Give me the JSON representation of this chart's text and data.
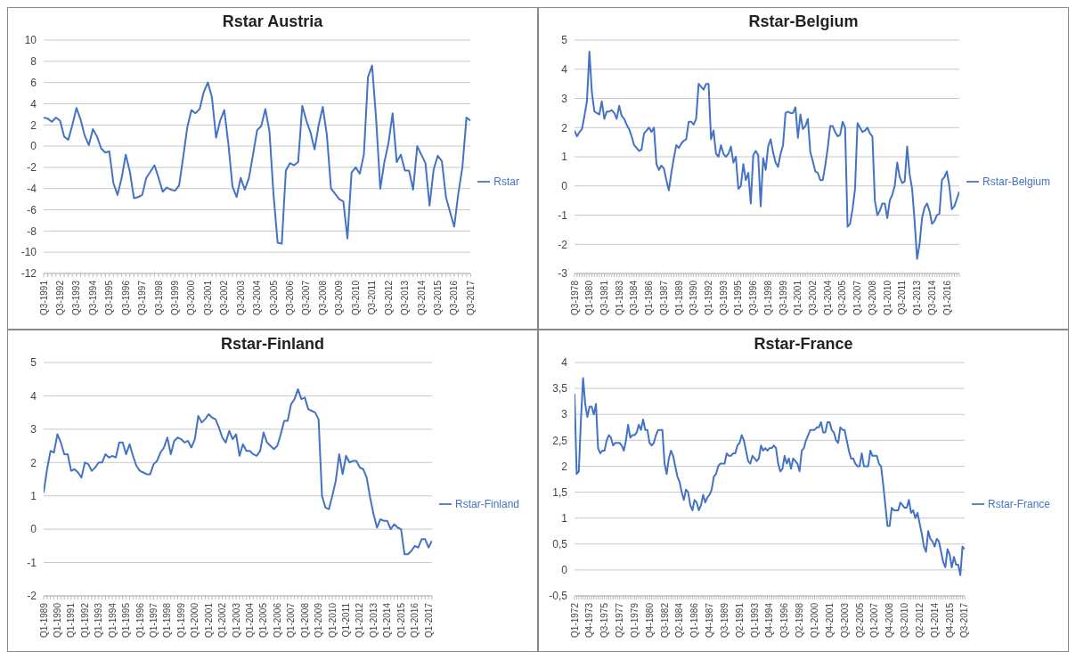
{
  "chart_data": [
    {
      "type": "line",
      "title": "Rstar Austria",
      "grid": "y",
      "legend": "right",
      "ylim": [
        -12,
        10
      ],
      "yticks": [
        -12,
        -10,
        -8,
        -6,
        -4,
        -2,
        0,
        2,
        4,
        6,
        8,
        10
      ],
      "categories": [
        "Q3-1991",
        null,
        null,
        null,
        "Q3-1992",
        null,
        null,
        null,
        "Q3-1993",
        null,
        null,
        null,
        "Q3-1994",
        null,
        null,
        null,
        "Q3-1995",
        null,
        null,
        null,
        "Q3-1996",
        null,
        null,
        null,
        "Q3-1997",
        null,
        null,
        null,
        "Q3-1998",
        null,
        null,
        null,
        "Q3-1999",
        null,
        null,
        null,
        "Q3-2000",
        null,
        null,
        null,
        "Q3-2001",
        null,
        null,
        null,
        "Q3-2002",
        null,
        null,
        null,
        "Q3-2003",
        null,
        null,
        null,
        "Q3-2004",
        null,
        null,
        null,
        "Q3-2005",
        null,
        null,
        null,
        "Q3-2006",
        null,
        null,
        null,
        "Q3-2007",
        null,
        null,
        null,
        "Q3-2008",
        null,
        null,
        null,
        "Q3-2009",
        null,
        null,
        null,
        "Q3-2010",
        null,
        null,
        null,
        "Q3-2011",
        null,
        null,
        null,
        "Q3-2012",
        null,
        null,
        null,
        "Q3-2013",
        null,
        null,
        null,
        "Q3-2014",
        null,
        null,
        null,
        "Q3-2015",
        null,
        null,
        null,
        "Q3-2016",
        null,
        null,
        null,
        "Q3-2017"
      ],
      "series": [
        {
          "name": "Rstar",
          "color": "#4472c4",
          "values": [
            2.7,
            2.6,
            2.3,
            2.7,
            2.4,
            0.9,
            0.6,
            2.0,
            3.6,
            2.5,
            1.0,
            0.1,
            1.6,
            0.9,
            -0.2,
            -0.6,
            -0.5,
            -3.5,
            -4.6,
            -3.0,
            -0.8,
            -2.4,
            -4.9,
            -4.8,
            -4.6,
            -3.0,
            -2.4,
            -1.8,
            -3.0,
            -4.3,
            -3.9,
            -4.1,
            -4.2,
            -3.7,
            -1.0,
            1.8,
            3.4,
            3.1,
            3.5,
            5.1,
            6.0,
            4.6,
            0.8,
            2.4,
            3.4,
            0.2,
            -3.8,
            -4.8,
            -3.0,
            -4.1,
            -3.0,
            -0.8,
            1.5,
            1.9,
            3.5,
            1.4,
            -4.6,
            -9.1,
            -9.2,
            -2.3,
            -1.6,
            -1.8,
            -1.5,
            3.8,
            2.4,
            1.3,
            -0.3,
            2.0,
            3.7,
            1.0,
            -4.0,
            -4.5,
            -5.0,
            -5.2,
            -8.7,
            -2.5,
            -2.0,
            -2.6,
            -0.8,
            6.5,
            7.6,
            2.5,
            -4.0,
            -1.5,
            0.3,
            3.1,
            -1.5,
            -0.8,
            -2.3,
            -2.3,
            -4.1,
            0.0,
            -0.8,
            -1.6,
            -5.6,
            -2.2,
            -0.9,
            -1.4,
            -4.8,
            -6.2,
            -7.6,
            -4.5,
            -2.0,
            2.7,
            2.4
          ]
        }
      ]
    },
    {
      "type": "line",
      "title": "Rstar-Belgium",
      "grid": "y",
      "legend": "right",
      "ylim": [
        -3,
        5
      ],
      "yticks": [
        -3,
        -2,
        -1,
        0,
        1,
        2,
        3,
        4,
        5
      ],
      "categories": [
        "Q3-1978",
        null,
        null,
        null,
        null,
        null,
        "Q1-1980",
        null,
        null,
        null,
        null,
        null,
        "Q3-1981",
        null,
        null,
        null,
        null,
        null,
        "Q1-1983",
        null,
        null,
        null,
        null,
        null,
        "Q3-1984",
        null,
        null,
        null,
        null,
        null,
        "Q1-1986",
        null,
        null,
        null,
        null,
        null,
        "Q3-1987",
        null,
        null,
        null,
        null,
        null,
        "Q1-1989",
        null,
        null,
        null,
        null,
        null,
        "Q3-1990",
        null,
        null,
        null,
        null,
        null,
        "Q1-1992",
        null,
        null,
        null,
        null,
        null,
        "Q3-1993",
        null,
        null,
        null,
        null,
        null,
        "Q1-1995",
        null,
        null,
        null,
        null,
        null,
        "Q3-1996",
        null,
        null,
        null,
        null,
        null,
        "Q1-1998",
        null,
        null,
        null,
        null,
        null,
        "Q3-1999",
        null,
        null,
        null,
        null,
        null,
        "Q1-2001",
        null,
        null,
        null,
        null,
        null,
        "Q3-2002",
        null,
        null,
        null,
        null,
        null,
        "Q1-2004",
        null,
        null,
        null,
        null,
        null,
        "Q3-2005",
        null,
        null,
        null,
        null,
        null,
        "Q1-2007",
        null,
        null,
        null,
        null,
        null,
        "Q3-2008",
        null,
        null,
        null,
        null,
        null,
        "Q1-2010",
        null,
        null,
        null,
        null,
        null,
        "Q3-2011",
        null,
        null,
        null,
        null,
        null,
        "Q1-2013",
        null,
        null,
        null,
        null,
        null,
        "Q3-2014",
        null,
        null,
        null,
        null,
        null,
        "Q1-2016",
        null,
        null,
        null,
        null,
        null
      ],
      "series": [
        {
          "name": "Rstar-Belgium",
          "color": "#4472c4",
          "values": [
            1.9,
            1.7,
            1.85,
            1.95,
            2.4,
            2.9,
            4.6,
            3.2,
            2.55,
            2.5,
            2.45,
            2.9,
            2.3,
            2.55,
            2.55,
            2.6,
            2.5,
            2.3,
            2.75,
            2.4,
            2.3,
            2.1,
            1.95,
            1.7,
            1.4,
            1.3,
            1.2,
            1.25,
            1.8,
            1.9,
            2.0,
            1.85,
            2.0,
            0.75,
            0.55,
            0.7,
            0.6,
            0.2,
            -0.15,
            0.45,
            0.95,
            1.4,
            1.3,
            1.45,
            1.55,
            1.6,
            2.2,
            2.2,
            2.1,
            2.3,
            3.5,
            3.4,
            3.3,
            3.5,
            3.5,
            1.6,
            1.9,
            1.1,
            1.0,
            1.4,
            1.1,
            1.0,
            1.1,
            1.35,
            0.8,
            1.0,
            -0.1,
            0.0,
            0.75,
            0.2,
            0.45,
            -0.6,
            1.05,
            1.2,
            1.05,
            -0.7,
            0.95,
            0.55,
            1.35,
            1.6,
            1.15,
            0.8,
            0.65,
            1.1,
            1.4,
            2.5,
            2.55,
            2.5,
            2.5,
            2.7,
            1.65,
            2.45,
            1.95,
            2.05,
            2.3,
            1.15,
            0.85,
            0.5,
            0.45,
            0.2,
            0.2,
            0.7,
            1.3,
            2.05,
            2.05,
            1.85,
            1.7,
            1.75,
            2.2,
            2.0,
            -1.4,
            -1.3,
            -0.8,
            -0.1,
            2.15,
            2.0,
            1.85,
            1.9,
            2.0,
            1.8,
            1.7,
            -0.5,
            -1.0,
            -0.85,
            -0.6,
            -0.6,
            -1.1,
            -0.5,
            -0.3,
            0.0,
            0.8,
            0.3,
            0.1,
            0.15,
            1.35,
            0.4,
            -0.1,
            -1.2,
            -2.5,
            -2.0,
            -1.1,
            -0.75,
            -0.6,
            -0.85,
            -1.3,
            -1.2,
            -1.0,
            -0.95,
            0.2,
            0.3,
            0.5,
            0.0,
            -0.8,
            -0.7,
            -0.45,
            -0.2
          ]
        }
      ]
    },
    {
      "type": "line",
      "title": "Rstar-Finland",
      "grid": "y",
      "legend": "right",
      "ylim": [
        -2,
        5
      ],
      "yticks": [
        -2,
        -1,
        0,
        1,
        2,
        3,
        4,
        5
      ],
      "categories": [
        "Q1-1989",
        null,
        null,
        null,
        "Q1-1990",
        null,
        null,
        null,
        "Q1-1991",
        null,
        null,
        null,
        "Q1-1992",
        null,
        null,
        null,
        "Q1-1993",
        null,
        null,
        null,
        "Q1-1994",
        null,
        null,
        null,
        "Q1-1995",
        null,
        null,
        null,
        "Q1-1996",
        null,
        null,
        null,
        "Q1-1997",
        null,
        null,
        null,
        "Q1-1998",
        null,
        null,
        null,
        "Q1-1999",
        null,
        null,
        null,
        "Q1-2000",
        null,
        null,
        null,
        "Q1-2001",
        null,
        null,
        null,
        "Q1-2002",
        null,
        null,
        null,
        "Q1-2003",
        null,
        null,
        null,
        "Q1-2004",
        null,
        null,
        null,
        "Q1-2005",
        null,
        null,
        null,
        "Q1-2006",
        null,
        null,
        null,
        "Q1-2007",
        null,
        null,
        null,
        "Q1-2008",
        null,
        null,
        null,
        "Q1-2009",
        null,
        null,
        null,
        "Q1-2010",
        null,
        null,
        null,
        "Q1-2011",
        null,
        null,
        null,
        "Q1-2012",
        null,
        null,
        null,
        "Q1-2013",
        null,
        null,
        null,
        "Q1-2014",
        null,
        null,
        null,
        "Q1-2015",
        null,
        null,
        null,
        "Q1-2016",
        null,
        null,
        null,
        "Q1-2017",
        null
      ],
      "series": [
        {
          "name": "Rstar-Finland",
          "color": "#4472c4",
          "values": [
            1.1,
            1.8,
            2.35,
            2.3,
            2.85,
            2.6,
            2.25,
            2.25,
            1.75,
            1.8,
            1.7,
            1.55,
            2.0,
            1.95,
            1.75,
            1.85,
            2.0,
            2.0,
            2.25,
            2.15,
            2.2,
            2.15,
            2.6,
            2.6,
            2.25,
            2.55,
            2.2,
            1.9,
            1.75,
            1.7,
            1.65,
            1.65,
            1.95,
            2.05,
            2.3,
            2.45,
            2.75,
            2.25,
            2.65,
            2.75,
            2.7,
            2.6,
            2.65,
            2.45,
            2.7,
            3.4,
            3.2,
            3.3,
            3.45,
            3.35,
            3.3,
            3.05,
            2.75,
            2.6,
            2.95,
            2.7,
            2.85,
            2.2,
            2.55,
            2.35,
            2.35,
            2.25,
            2.2,
            2.35,
            2.9,
            2.6,
            2.5,
            2.4,
            2.5,
            2.85,
            3.25,
            3.25,
            3.75,
            3.9,
            4.2,
            3.9,
            3.95,
            3.6,
            3.55,
            3.5,
            3.3,
            1.0,
            0.65,
            0.6,
            1.0,
            1.45,
            2.25,
            1.65,
            2.2,
            2.0,
            2.05,
            2.05,
            1.85,
            1.8,
            1.55,
            0.95,
            0.45,
            0.05,
            0.3,
            0.25,
            0.25,
            0.0,
            0.15,
            0.05,
            0.0,
            -0.75,
            -0.75,
            -0.65,
            -0.5,
            -0.55,
            -0.3,
            -0.3,
            -0.55,
            -0.35
          ]
        }
      ]
    },
    {
      "type": "line",
      "title": "Rstar-France",
      "grid": "y",
      "legend": "right",
      "ylim": [
        -0.5,
        4
      ],
      "yticks": [
        {
          "value": -0.5,
          "label": "-0,5"
        },
        0,
        {
          "value": 0.5,
          "label": "0,5"
        },
        1,
        {
          "value": 1.5,
          "label": "1,5"
        },
        2,
        {
          "value": 2.5,
          "label": "2,5"
        },
        3,
        {
          "value": 3.5,
          "label": "3,5"
        },
        4
      ],
      "categories": [
        "Q1-1972",
        null,
        null,
        null,
        null,
        null,
        null,
        "Q4-1973",
        null,
        null,
        null,
        null,
        null,
        null,
        "Q3-1975",
        null,
        null,
        null,
        null,
        null,
        null,
        "Q2-1977",
        null,
        null,
        null,
        null,
        null,
        null,
        "Q1-1979",
        null,
        null,
        null,
        null,
        null,
        null,
        "Q4-1980",
        null,
        null,
        null,
        null,
        null,
        null,
        "Q3-1982",
        null,
        null,
        null,
        null,
        null,
        null,
        "Q2-1984",
        null,
        null,
        null,
        null,
        null,
        null,
        "Q1-1986",
        null,
        null,
        null,
        null,
        null,
        null,
        "Q4-1987",
        null,
        null,
        null,
        null,
        null,
        null,
        "Q3-1989",
        null,
        null,
        null,
        null,
        null,
        null,
        "Q2-1991",
        null,
        null,
        null,
        null,
        null,
        null,
        "Q1-1993",
        null,
        null,
        null,
        null,
        null,
        null,
        "Q4-1994",
        null,
        null,
        null,
        null,
        null,
        null,
        "Q3-1996",
        null,
        null,
        null,
        null,
        null,
        null,
        "Q2-1998",
        null,
        null,
        null,
        null,
        null,
        null,
        "Q1-2000",
        null,
        null,
        null,
        null,
        null,
        null,
        "Q4-2001",
        null,
        null,
        null,
        null,
        null,
        null,
        "Q3-2003",
        null,
        null,
        null,
        null,
        null,
        null,
        "Q2-2005",
        null,
        null,
        null,
        null,
        null,
        null,
        "Q1-2007",
        null,
        null,
        null,
        null,
        null,
        null,
        "Q4-2008",
        null,
        null,
        null,
        null,
        null,
        null,
        "Q3-2010",
        null,
        null,
        null,
        null,
        null,
        null,
        "Q2-2012",
        null,
        null,
        null,
        null,
        null,
        null,
        "Q1-2014",
        null,
        null,
        null,
        null,
        null,
        null,
        "Q4-2015",
        null,
        null,
        null,
        null,
        null,
        null,
        "Q3-2017"
      ],
      "series": [
        {
          "name": "Rstar-France",
          "color": "#4472c4",
          "values": [
            3.4,
            1.85,
            1.9,
            2.9,
            3.7,
            3.2,
            2.95,
            3.15,
            3.15,
            3.0,
            3.2,
            2.35,
            2.25,
            2.3,
            2.3,
            2.5,
            2.6,
            2.55,
            2.4,
            2.45,
            2.45,
            2.45,
            2.4,
            2.3,
            2.5,
            2.8,
            2.55,
            2.6,
            2.6,
            2.65,
            2.8,
            2.7,
            2.9,
            2.7,
            2.7,
            2.45,
            2.4,
            2.45,
            2.6,
            2.7,
            2.7,
            2.7,
            2.05,
            1.85,
            2.15,
            2.3,
            2.2,
            2.0,
            1.8,
            1.7,
            1.5,
            1.35,
            1.55,
            1.5,
            1.25,
            1.15,
            1.35,
            1.3,
            1.15,
            1.25,
            1.45,
            1.3,
            1.4,
            1.45,
            1.55,
            1.8,
            1.85,
            2.0,
            2.05,
            2.05,
            2.05,
            2.25,
            2.2,
            2.2,
            2.25,
            2.25,
            2.4,
            2.45,
            2.6,
            2.5,
            2.3,
            2.1,
            2.05,
            2.2,
            2.15,
            2.1,
            2.15,
            2.4,
            2.3,
            2.35,
            2.3,
            2.35,
            2.35,
            2.4,
            2.35,
            2.05,
            1.9,
            1.95,
            2.2,
            2.05,
            2.15,
            1.95,
            2.15,
            2.1,
            2.05,
            1.9,
            2.3,
            2.35,
            2.5,
            2.6,
            2.7,
            2.7,
            2.7,
            2.75,
            2.75,
            2.85,
            2.65,
            2.65,
            2.85,
            2.85,
            2.7,
            2.65,
            2.5,
            2.45,
            2.75,
            2.7,
            2.7,
            2.5,
            2.3,
            2.15,
            2.15,
            2.05,
            2.0,
            2.0,
            2.25,
            2.0,
            2.0,
            2.0,
            2.3,
            2.2,
            2.2,
            2.2,
            2.05,
            2.0,
            1.65,
            1.25,
            0.85,
            0.85,
            1.2,
            1.15,
            1.15,
            1.15,
            1.3,
            1.25,
            1.2,
            1.2,
            1.35,
            1.1,
            1.15,
            1.0,
            1.1,
            0.9,
            0.7,
            0.45,
            0.35,
            0.75,
            0.6,
            0.55,
            0.45,
            0.6,
            0.55,
            0.35,
            0.15,
            0.05,
            0.4,
            0.3,
            0.05,
            0.25,
            0.1,
            0.1,
            -0.1,
            0.45,
            0.4
          ]
        }
      ]
    }
  ]
}
